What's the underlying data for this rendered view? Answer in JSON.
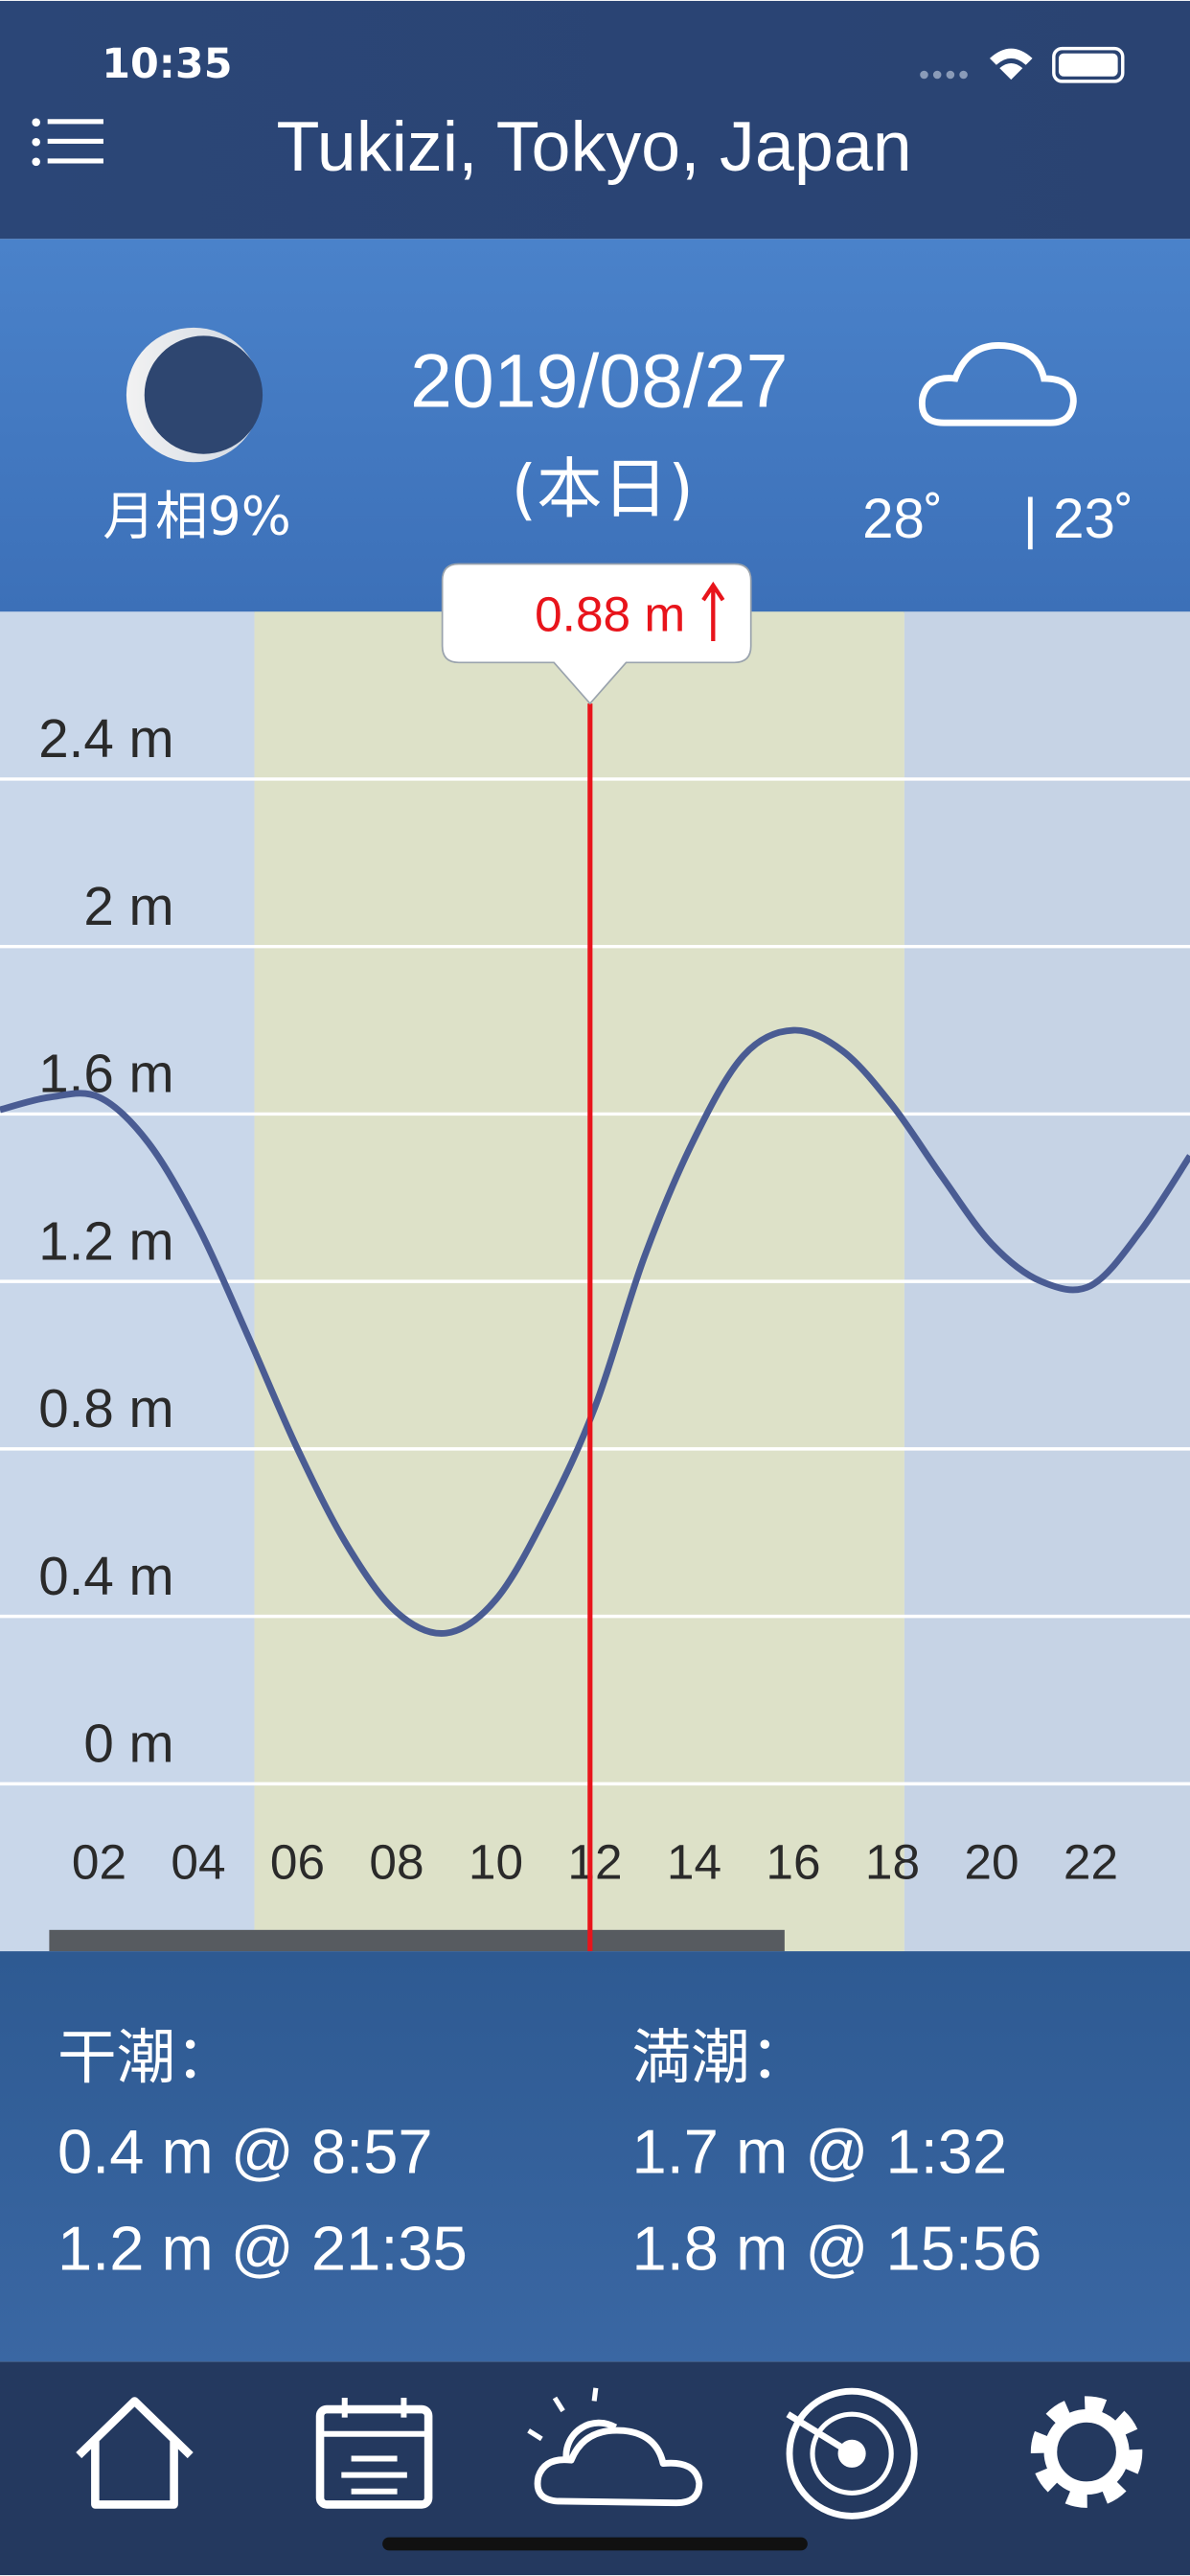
{
  "status_bar": {
    "time": "10:35"
  },
  "header": {
    "title": "Tukizi, Tokyo, Japan"
  },
  "day": {
    "date": "2019/08/27",
    "today": "(本日)",
    "moon_phase": "月相9%",
    "temp_high": "28˚",
    "temp_low": "| 23˚"
  },
  "chart_data": {
    "type": "line",
    "x": [
      0,
      1,
      2,
      3,
      4,
      5,
      6,
      7,
      8,
      9,
      10,
      11,
      12,
      13,
      14,
      15,
      16,
      17,
      18,
      19,
      20,
      21,
      22,
      23,
      24
    ],
    "series": [
      {
        "color": "#4a5c93",
        "values": [
          1.61,
          1.64,
          1.64,
          1.53,
          1.33,
          1.07,
          0.8,
          0.57,
          0.41,
          0.36,
          0.44,
          0.64,
          0.9,
          1.26,
          1.54,
          1.74,
          1.8,
          1.75,
          1.62,
          1.45,
          1.29,
          1.2,
          1.19,
          1.32,
          1.5
        ]
      }
    ],
    "xlim": [
      0,
      24
    ],
    "xticks": [
      {
        "value": 2,
        "label": "02"
      },
      {
        "value": 4,
        "label": "04"
      },
      {
        "value": 6,
        "label": "06"
      },
      {
        "value": 8,
        "label": "08"
      },
      10,
      12,
      14,
      16,
      18,
      20,
      22
    ],
    "ylim": [
      -0.4,
      2.8
    ],
    "yticks": [
      {
        "value": 0,
        "label": "0 m"
      },
      {
        "value": 0.4,
        "label": "0.4 m"
      },
      {
        "value": 0.8,
        "label": "0.8 m"
      },
      {
        "value": 1.2,
        "label": "1.2 m"
      },
      {
        "value": 1.6,
        "label": "1.6 m"
      },
      {
        "value": 2,
        "label": "2 m"
      },
      {
        "value": 2.4,
        "label": "2.4 m"
      }
    ],
    "grid": true,
    "marker_x": 11.9,
    "marker_color": "#e8141b",
    "tooltip": "0.88 m"
  },
  "tides": {
    "low_label": "干潮：",
    "low": [
      "0.4 m @ 8:57",
      "1.2 m @ 21:35"
    ],
    "high_label": "満潮：",
    "high": [
      "1.7 m @ 1:32",
      "1.8 m @ 15:56"
    ]
  }
}
